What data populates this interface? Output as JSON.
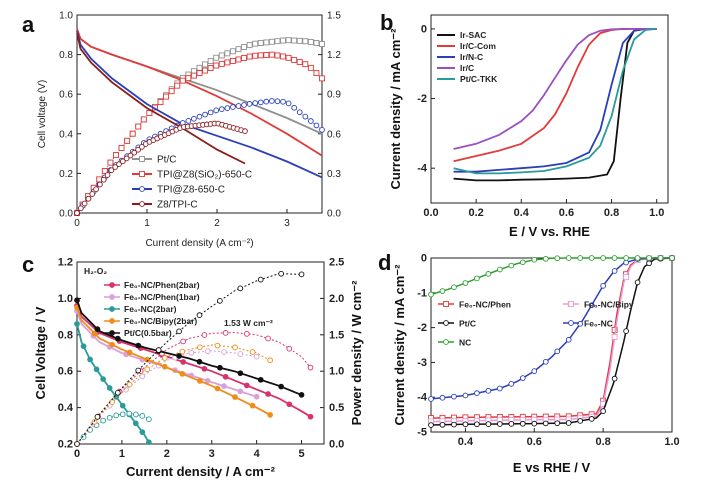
{
  "chart_data": [
    {
      "panel": "a",
      "type": "line",
      "xlabel": "Current density (A cm⁻²)",
      "ylabel": "Cell voltage (V)",
      "ylabel_right": "",
      "xlim": [
        0,
        3.5
      ],
      "ylim": [
        0,
        1.0
      ],
      "y2lim": [
        0,
        1.5
      ],
      "xticks": [
        "0",
        "1",
        "2",
        "3"
      ],
      "yticks": [
        "0.0",
        "0.2",
        "0.4",
        "0.6",
        "0.8",
        "1.0"
      ],
      "y2ticks": [
        "0.0",
        "0.3",
        "0.6",
        "0.9",
        "1.2",
        "1.5"
      ],
      "legend_position": "bottom-left",
      "series": [
        {
          "name": "Pt/C",
          "color": "#909090",
          "marker": "square",
          "polarization": {
            "x": [
              0,
              0.05,
              0.2,
              0.5,
              1.0,
              1.5,
              2.0,
              2.5,
              3.0,
              3.5
            ],
            "y": [
              0.93,
              0.88,
              0.84,
              0.8,
              0.74,
              0.68,
              0.62,
              0.55,
              0.48,
              0.4
            ]
          },
          "power": {
            "x": [
              0,
              0.5,
              1.0,
              1.5,
              2.0,
              2.5,
              3.0,
              3.3,
              3.5
            ],
            "y": [
              0,
              0.4,
              0.74,
              1.02,
              1.18,
              1.28,
              1.31,
              1.3,
              1.28
            ]
          }
        },
        {
          "name": "TPI@Z8(SiO₂)-650-C",
          "color": "#e03a3a",
          "marker": "square",
          "polarization": {
            "x": [
              0,
              0.05,
              0.2,
              0.5,
              1.0,
              1.5,
              2.0,
              2.5,
              3.0,
              3.5
            ],
            "y": [
              0.93,
              0.88,
              0.84,
              0.8,
              0.74,
              0.67,
              0.59,
              0.5,
              0.4,
              0.29
            ]
          },
          "power": {
            "x": [
              0,
              0.5,
              1.0,
              1.5,
              2.0,
              2.5,
              2.8,
              3.0,
              3.3,
              3.5
            ],
            "y": [
              0,
              0.4,
              0.74,
              1.0,
              1.12,
              1.19,
              1.2,
              1.18,
              1.12,
              1.02
            ]
          }
        },
        {
          "name": "TPI@Z8-650-C",
          "color": "#2a3fb8",
          "marker": "circle",
          "polarization": {
            "x": [
              0,
              0.05,
              0.2,
              0.5,
              1.0,
              1.5,
              2.0,
              2.5,
              3.0,
              3.5
            ],
            "y": [
              0.92,
              0.85,
              0.78,
              0.68,
              0.55,
              0.45,
              0.39,
              0.33,
              0.26,
              0.18
            ]
          },
          "power": {
            "x": [
              0,
              0.5,
              1.0,
              1.5,
              2.0,
              2.5,
              2.8,
              3.0,
              3.5
            ],
            "y": [
              0,
              0.34,
              0.55,
              0.68,
              0.78,
              0.83,
              0.85,
              0.84,
              0.63
            ]
          }
        },
        {
          "name": "Z8/TPI-C",
          "color": "#8b1c1c",
          "marker": "circle",
          "polarization": {
            "x": [
              0,
              0.05,
              0.2,
              0.5,
              1.0,
              1.5,
              2.0,
              2.4
            ],
            "y": [
              0.91,
              0.83,
              0.76,
              0.66,
              0.53,
              0.43,
              0.32,
              0.25
            ]
          },
          "power": {
            "x": [
              0,
              0.5,
              1.0,
              1.5,
              2.0,
              2.4
            ],
            "y": [
              0,
              0.33,
              0.53,
              0.65,
              0.68,
              0.62
            ]
          }
        }
      ]
    },
    {
      "panel": "b",
      "type": "line",
      "xlabel": "E / V vs. RHE",
      "ylabel": "Current density / mA cm⁻²",
      "xlim": [
        0.0,
        1.05
      ],
      "ylim": [
        -5.0,
        0.4
      ],
      "xticks": [
        "0.0",
        "0.2",
        "0.4",
        "0.6",
        "0.8",
        "1.0"
      ],
      "yticks": [
        "-4",
        "-2",
        "0"
      ],
      "legend_position": "top-left",
      "series": [
        {
          "name": "Ir-SAC",
          "color": "#111111",
          "x": [
            0.1,
            0.2,
            0.3,
            0.4,
            0.5,
            0.6,
            0.7,
            0.78,
            0.81,
            0.84,
            0.87,
            0.9,
            0.95,
            1.0
          ],
          "y": [
            -4.3,
            -4.35,
            -4.35,
            -4.33,
            -4.32,
            -4.3,
            -4.27,
            -4.18,
            -3.8,
            -2.0,
            -0.4,
            -0.05,
            0,
            0
          ]
        },
        {
          "name": "Ir/C-Com",
          "color": "#e03a3a",
          "x": [
            0.1,
            0.2,
            0.3,
            0.4,
            0.5,
            0.55,
            0.6,
            0.65,
            0.7,
            0.75,
            0.8,
            0.85,
            0.9,
            1.0
          ],
          "y": [
            -3.8,
            -3.65,
            -3.5,
            -3.3,
            -2.85,
            -2.45,
            -1.85,
            -1.1,
            -0.45,
            -0.12,
            -0.03,
            0,
            0,
            0
          ]
        },
        {
          "name": "Ir/N-C",
          "color": "#2a3fb8",
          "x": [
            0.1,
            0.2,
            0.3,
            0.4,
            0.5,
            0.6,
            0.7,
            0.75,
            0.8,
            0.85,
            0.9,
            0.95,
            1.0
          ],
          "y": [
            -4.1,
            -4.1,
            -4.05,
            -4.0,
            -3.95,
            -3.85,
            -3.55,
            -2.9,
            -1.6,
            -0.4,
            -0.05,
            0,
            0
          ]
        },
        {
          "name": "Ir/C",
          "color": "#9a4fc0",
          "x": [
            0.1,
            0.2,
            0.3,
            0.4,
            0.45,
            0.5,
            0.55,
            0.6,
            0.65,
            0.7,
            0.75,
            0.8,
            0.9,
            1.0
          ],
          "y": [
            -3.45,
            -3.3,
            -3.05,
            -2.65,
            -2.35,
            -1.9,
            -1.4,
            -0.9,
            -0.45,
            -0.18,
            -0.05,
            -0.01,
            0,
            0
          ]
        },
        {
          "name": "Pt/C-TKK",
          "color": "#2a9a9a",
          "x": [
            0.1,
            0.2,
            0.3,
            0.4,
            0.5,
            0.6,
            0.7,
            0.75,
            0.8,
            0.85,
            0.9,
            0.95,
            1.0
          ],
          "y": [
            -4.0,
            -4.15,
            -4.15,
            -4.12,
            -4.08,
            -3.95,
            -3.7,
            -3.35,
            -2.5,
            -1.2,
            -0.3,
            -0.03,
            0
          ]
        }
      ]
    },
    {
      "panel": "c",
      "type": "line",
      "xlabel": "Current density / A cm⁻²",
      "ylabel": "Cell Voltage / V",
      "ylabel_right": "Power density / W cm⁻²",
      "xlim": [
        0,
        5.5
      ],
      "ylim": [
        0.2,
        1.2
      ],
      "y2lim": [
        0,
        2.5
      ],
      "xticks": [
        "0",
        "1",
        "2",
        "3",
        "4",
        "5"
      ],
      "yticks": [
        "0.2",
        "0.4",
        "0.6",
        "0.8",
        "1.0",
        "1.2"
      ],
      "y2ticks": [
        "0.0",
        "0.5",
        "1.0",
        "1.5",
        "2.0",
        "2.5"
      ],
      "annotation": "1.53 W cm⁻²",
      "legend_title": "H₂-O₂",
      "legend_position": "top-left",
      "series": [
        {
          "name": "Fe₀-NC/Phen(2bar)",
          "color": "#d6336c",
          "marker": "circle",
          "polarization": {
            "x": [
              0,
              0.1,
              0.5,
              1.0,
              1.5,
              2.0,
              2.5,
              3.0,
              3.5,
              4.0,
              4.5,
              5.0,
              5.2
            ],
            "y": [
              0.96,
              0.9,
              0.81,
              0.76,
              0.72,
              0.68,
              0.64,
              0.6,
              0.55,
              0.5,
              0.45,
              0.38,
              0.35
            ]
          },
          "power": {
            "x": [
              0,
              0.5,
              1.0,
              1.5,
              2.0,
              2.5,
              3.0,
              3.5,
              4.0,
              4.5,
              5.0,
              5.2
            ],
            "y": [
              0,
              0.4,
              0.76,
              1.05,
              1.3,
              1.45,
              1.52,
              1.53,
              1.5,
              1.4,
              1.2,
              1.05
            ]
          }
        },
        {
          "name": "Fe₀-NC/Phen(1bar)",
          "color": "#d9a0d9",
          "marker": "circle",
          "polarization": {
            "x": [
              0,
              0.1,
              0.5,
              1.0,
              1.5,
              2.0,
              2.5,
              3.0,
              3.5,
              4.0
            ],
            "y": [
              0.93,
              0.86,
              0.76,
              0.7,
              0.66,
              0.62,
              0.58,
              0.54,
              0.5,
              0.46
            ]
          },
          "power": {
            "x": [
              0,
              0.5,
              1.0,
              1.5,
              2.0,
              2.5,
              3.0,
              3.5,
              4.0
            ],
            "y": [
              0,
              0.38,
              0.7,
              0.95,
              1.15,
              1.25,
              1.28,
              1.25,
              1.2
            ]
          }
        },
        {
          "name": "Fe₀-NC(2bar)",
          "color": "#2a9a9a",
          "marker": "circle",
          "polarization": {
            "x": [
              0,
              0.1,
              0.3,
              0.6,
              0.9,
              1.2,
              1.5,
              1.6
            ],
            "y": [
              0.86,
              0.76,
              0.66,
              0.55,
              0.45,
              0.35,
              0.25,
              0.21
            ]
          },
          "power": {
            "x": [
              0,
              0.3,
              0.6,
              0.9,
              1.2,
              1.5,
              1.6
            ],
            "y": [
              0,
              0.2,
              0.33,
              0.4,
              0.42,
              0.38,
              0.34
            ]
          }
        },
        {
          "name": "Fe₀-NC/Bipy(2bar)",
          "color": "#f08c1a",
          "marker": "circle",
          "polarization": {
            "x": [
              0,
              0.1,
              0.5,
              1.0,
              1.5,
              2.0,
              2.5,
              3.0,
              3.5,
              4.0,
              4.3
            ],
            "y": [
              0.95,
              0.88,
              0.78,
              0.72,
              0.67,
              0.62,
              0.57,
              0.52,
              0.46,
              0.4,
              0.36
            ]
          },
          "power": {
            "x": [
              0,
              0.5,
              1.0,
              1.5,
              2.0,
              2.5,
              3.0,
              3.5,
              4.0,
              4.3
            ],
            "y": [
              0,
              0.39,
              0.72,
              1.0,
              1.2,
              1.3,
              1.36,
              1.33,
              1.25,
              1.15
            ]
          }
        },
        {
          "name": "Pt/C(0.5bar)",
          "color": "#111111",
          "marker": "circle",
          "polarization": {
            "x": [
              0,
              0.1,
              0.5,
              1.0,
              1.5,
              2.0,
              2.5,
              3.0,
              3.5,
              4.0,
              4.5,
              5.0
            ],
            "y": [
              0.99,
              0.92,
              0.82,
              0.77,
              0.73,
              0.7,
              0.67,
              0.63,
              0.6,
              0.56,
              0.52,
              0.47
            ]
          },
          "power": {
            "x": [
              0,
              0.5,
              1.0,
              1.5,
              2.0,
              2.5,
              3.0,
              3.5,
              4.0,
              4.5,
              5.0
            ],
            "y": [
              0,
              0.41,
              0.77,
              1.1,
              1.4,
              1.67,
              1.89,
              2.1,
              2.24,
              2.34,
              2.33
            ]
          }
        }
      ]
    },
    {
      "panel": "d",
      "type": "line",
      "xlabel": "E vs RHE / V",
      "ylabel": "Current density / mA cm⁻²",
      "xlim": [
        0.3,
        1.0
      ],
      "ylim": [
        -5.0,
        0.0
      ],
      "xticks": [
        "0.4",
        "0.6",
        "0.8",
        "1.0"
      ],
      "yticks": [
        "-5",
        "-4",
        "-3",
        "-2",
        "-1",
        "0"
      ],
      "legend_position": "top-left",
      "series": [
        {
          "name": "Fe₀-NC/Phen",
          "color": "#e03a3a",
          "marker": "square",
          "x": [
            0.3,
            0.4,
            0.5,
            0.6,
            0.7,
            0.78,
            0.8,
            0.82,
            0.84,
            0.86,
            0.88,
            0.9,
            0.95,
            1.0
          ],
          "y": [
            -4.6,
            -4.58,
            -4.57,
            -4.56,
            -4.55,
            -4.48,
            -4.1,
            -3.0,
            -1.6,
            -0.6,
            -0.2,
            -0.05,
            0,
            0
          ]
        },
        {
          "name": "Fe₀-NC/Bipy",
          "color": "#e89ad8",
          "marker": "square",
          "x": [
            0.3,
            0.4,
            0.5,
            0.6,
            0.7,
            0.78,
            0.8,
            0.82,
            0.84,
            0.86,
            0.88,
            0.9,
            0.95,
            1.0
          ],
          "y": [
            -4.7,
            -4.68,
            -4.66,
            -4.65,
            -4.64,
            -4.55,
            -4.2,
            -3.2,
            -1.8,
            -0.7,
            -0.25,
            -0.06,
            0,
            0
          ]
        },
        {
          "name": "Pt/C",
          "color": "#111111",
          "marker": "circle",
          "x": [
            0.3,
            0.4,
            0.5,
            0.6,
            0.7,
            0.78,
            0.8,
            0.83,
            0.86,
            0.88,
            0.9,
            0.92,
            0.95,
            1.0
          ],
          "y": [
            -4.8,
            -4.78,
            -4.77,
            -4.76,
            -4.74,
            -4.6,
            -4.4,
            -3.6,
            -2.4,
            -1.5,
            -0.7,
            -0.25,
            -0.03,
            0
          ]
        },
        {
          "name": "Fe₀-NC",
          "color": "#2a3fb8",
          "marker": "circle",
          "x": [
            0.3,
            0.4,
            0.5,
            0.55,
            0.6,
            0.65,
            0.7,
            0.74,
            0.77,
            0.8,
            0.83,
            0.86,
            0.9,
            0.95,
            1.0
          ],
          "y": [
            -4.05,
            -3.95,
            -3.75,
            -3.55,
            -3.25,
            -2.85,
            -2.35,
            -1.8,
            -1.3,
            -0.8,
            -0.4,
            -0.15,
            -0.03,
            0,
            0
          ]
        },
        {
          "name": "NC",
          "color": "#2ea02e",
          "marker": "circle",
          "x": [
            0.3,
            0.35,
            0.4,
            0.45,
            0.5,
            0.55,
            0.6,
            0.65,
            0.7,
            0.8,
            0.9,
            1.0
          ],
          "y": [
            -1.05,
            -0.9,
            -0.72,
            -0.52,
            -0.33,
            -0.16,
            -0.05,
            -0.01,
            0,
            0,
            0,
            0
          ]
        }
      ]
    }
  ],
  "panel_labels": [
    "a",
    "b",
    "c",
    "d"
  ]
}
